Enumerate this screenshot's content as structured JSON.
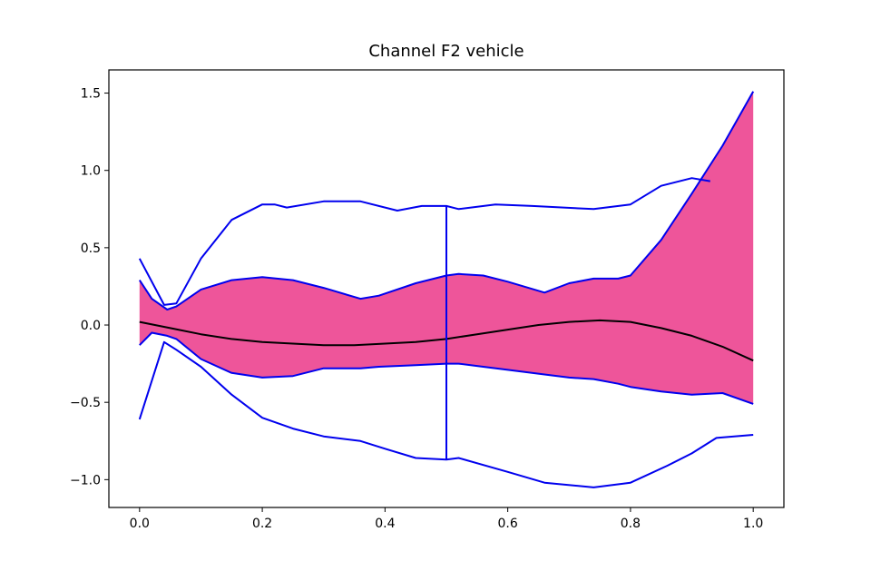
{
  "chart_data": {
    "type": "area",
    "title": "Channel F2 vehicle",
    "xlabel": "",
    "ylabel": "",
    "xlim": [
      -0.05,
      1.05
    ],
    "ylim": [
      -1.18,
      1.65
    ],
    "grid": false,
    "xticks": [
      0.0,
      0.2,
      0.4,
      0.6,
      0.8,
      1.0
    ],
    "xtick_labels": [
      "0.0",
      "0.2",
      "0.4",
      "0.6",
      "0.8",
      "1.0"
    ],
    "yticks": [
      -1.0,
      -0.5,
      0.0,
      0.5,
      1.0,
      1.5
    ],
    "ytick_labels": [
      "−1.0",
      "−0.5",
      "0.0",
      "0.5",
      "1.0",
      "1.5"
    ],
    "colors": {
      "band_fill": "#ee559a",
      "bound_line": "#0000ee",
      "mean_line": "#000000"
    },
    "band": {
      "x": [
        0.0,
        0.02,
        0.045,
        0.06,
        0.1,
        0.15,
        0.2,
        0.25,
        0.3,
        0.36,
        0.39,
        0.45,
        0.5,
        0.52,
        0.56,
        0.6,
        0.66,
        0.7,
        0.74,
        0.78,
        0.8,
        0.85,
        0.9,
        0.95,
        1.0
      ],
      "upper": [
        0.29,
        0.17,
        0.1,
        0.12,
        0.23,
        0.29,
        0.31,
        0.29,
        0.24,
        0.17,
        0.19,
        0.27,
        0.32,
        0.33,
        0.32,
        0.28,
        0.21,
        0.27,
        0.3,
        0.3,
        0.32,
        0.55,
        0.85,
        1.16,
        1.51
      ],
      "lower": [
        -0.13,
        -0.05,
        -0.07,
        -0.09,
        -0.22,
        -0.31,
        -0.34,
        -0.33,
        -0.28,
        -0.28,
        -0.27,
        -0.26,
        -0.25,
        -0.25,
        -0.27,
        -0.29,
        -0.32,
        -0.34,
        -0.35,
        -0.38,
        -0.4,
        -0.43,
        -0.45,
        -0.44,
        -0.51
      ]
    },
    "series": [
      {
        "role": "mean",
        "x": [
          0.0,
          0.05,
          0.1,
          0.15,
          0.2,
          0.25,
          0.3,
          0.35,
          0.4,
          0.45,
          0.5,
          0.55,
          0.6,
          0.65,
          0.7,
          0.75,
          0.8,
          0.85,
          0.9,
          0.95,
          1.0
        ],
        "y": [
          0.02,
          -0.02,
          -0.06,
          -0.09,
          -0.11,
          -0.12,
          -0.13,
          -0.13,
          -0.12,
          -0.11,
          -0.09,
          -0.06,
          -0.03,
          0.0,
          0.02,
          0.03,
          0.02,
          -0.02,
          -0.07,
          -0.14,
          -0.23
        ]
      },
      {
        "role": "outer-upper",
        "x": [
          0.0,
          0.04,
          0.06,
          0.1,
          0.15,
          0.2,
          0.22,
          0.24,
          0.3,
          0.36,
          0.42,
          0.46,
          0.5,
          0.52,
          0.58,
          0.64,
          0.74,
          0.8,
          0.85,
          0.9,
          0.93
        ],
        "y": [
          0.43,
          0.13,
          0.14,
          0.43,
          0.68,
          0.78,
          0.78,
          0.76,
          0.8,
          0.8,
          0.74,
          0.77,
          0.77,
          0.75,
          0.78,
          0.77,
          0.75,
          0.78,
          0.9,
          0.95,
          0.93
        ]
      },
      {
        "role": "outer-lower",
        "x": [
          0.0,
          0.04,
          0.06,
          0.1,
          0.15,
          0.2,
          0.25,
          0.3,
          0.36,
          0.4,
          0.45,
          0.5,
          0.52,
          0.6,
          0.66,
          0.74,
          0.8,
          0.86,
          0.9,
          0.94,
          1.0
        ],
        "y": [
          -0.61,
          -0.11,
          -0.16,
          -0.27,
          -0.45,
          -0.6,
          -0.67,
          -0.72,
          -0.75,
          -0.8,
          -0.86,
          -0.87,
          -0.86,
          -0.95,
          -1.02,
          -1.05,
          -1.02,
          -0.91,
          -0.83,
          -0.73,
          -0.71
        ]
      },
      {
        "role": "step",
        "x": [
          0.5,
          0.5
        ],
        "y": [
          0.77,
          -0.87
        ]
      }
    ]
  }
}
